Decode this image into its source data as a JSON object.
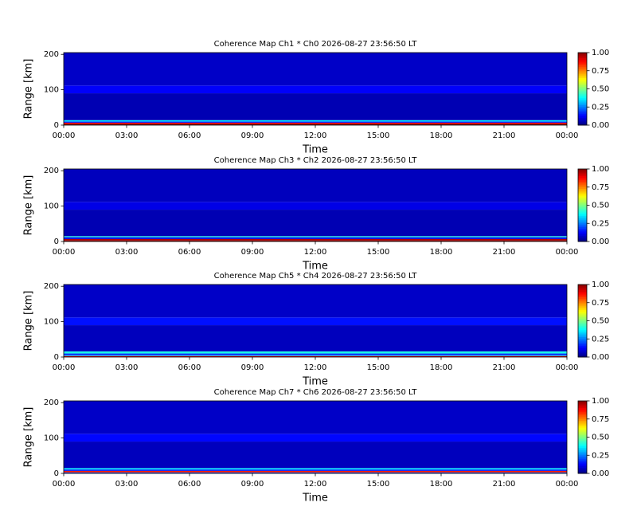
{
  "chart_data": [
    {
      "type": "heatmap",
      "title": "Coherence Map Ch1 * Ch0 2026-08-27 23:56:50 LT",
      "xlabel": "Time",
      "ylabel": "Range [km]",
      "xlim": [
        0,
        24
      ],
      "xticks": [
        {
          "value": 0,
          "label": "00:00"
        },
        {
          "value": 3,
          "label": "03:00"
        },
        {
          "value": 6,
          "label": "06:00"
        },
        {
          "value": 9,
          "label": "09:00"
        },
        {
          "value": 12,
          "label": "12:00"
        },
        {
          "value": 15,
          "label": "15:00"
        },
        {
          "value": 18,
          "label": "18:00"
        },
        {
          "value": 21,
          "label": "21:00"
        },
        {
          "value": 24,
          "label": "00:00"
        }
      ],
      "ylim": [
        0,
        205
      ],
      "yticks": [
        0,
        100,
        200
      ],
      "y_bins": [
        0,
        3,
        7,
        10,
        14,
        90,
        112,
        205
      ],
      "z": [
        1.0,
        0.9,
        0.15,
        0.35,
        0.05,
        0.12,
        0.07
      ],
      "colorbar": {
        "lim": [
          0,
          1
        ],
        "ticks": [
          {
            "value": 0,
            "label": "0.00"
          },
          {
            "value": 0.25,
            "label": "0.25"
          },
          {
            "value": 0.5,
            "label": "0.50"
          },
          {
            "value": 0.75,
            "label": "0.75"
          },
          {
            "value": 1,
            "label": "1.00"
          }
        ]
      }
    },
    {
      "type": "heatmap",
      "title": "Coherence Map Ch3 * Ch2 2026-08-27 23:56:50 LT",
      "xlabel": "Time",
      "ylabel": "Range [km]",
      "xlim": [
        0,
        24
      ],
      "xticks": [
        {
          "value": 0,
          "label": "00:00"
        },
        {
          "value": 3,
          "label": "03:00"
        },
        {
          "value": 6,
          "label": "06:00"
        },
        {
          "value": 9,
          "label": "09:00"
        },
        {
          "value": 12,
          "label": "12:00"
        },
        {
          "value": 15,
          "label": "15:00"
        },
        {
          "value": 18,
          "label": "18:00"
        },
        {
          "value": 21,
          "label": "21:00"
        },
        {
          "value": 24,
          "label": "00:00"
        }
      ],
      "ylim": [
        0,
        205
      ],
      "yticks": [
        0,
        100,
        200
      ],
      "y_bins": [
        0,
        3,
        7,
        12,
        15,
        90,
        112,
        205
      ],
      "z": [
        1.0,
        0.95,
        0.1,
        0.4,
        0.05,
        0.1,
        0.06
      ],
      "colorbar": {
        "lim": [
          0,
          1
        ],
        "ticks": [
          {
            "value": 0,
            "label": "0.00"
          },
          {
            "value": 0.25,
            "label": "0.25"
          },
          {
            "value": 0.5,
            "label": "0.50"
          },
          {
            "value": 0.75,
            "label": "0.75"
          },
          {
            "value": 1,
            "label": "1.00"
          }
        ]
      }
    },
    {
      "type": "heatmap",
      "title": "Coherence Map Ch5 * Ch4 2026-08-27 23:56:50 LT",
      "xlabel": "Time",
      "ylabel": "Range [km]",
      "xlim": [
        0,
        24
      ],
      "xticks": [
        {
          "value": 0,
          "label": "00:00"
        },
        {
          "value": 3,
          "label": "03:00"
        },
        {
          "value": 6,
          "label": "06:00"
        },
        {
          "value": 9,
          "label": "09:00"
        },
        {
          "value": 12,
          "label": "12:00"
        },
        {
          "value": 15,
          "label": "15:00"
        },
        {
          "value": 18,
          "label": "18:00"
        },
        {
          "value": 21,
          "label": "21:00"
        },
        {
          "value": 24,
          "label": "00:00"
        }
      ],
      "ylim": [
        0,
        205
      ],
      "yticks": [
        0,
        100,
        200
      ],
      "y_bins": [
        0,
        3,
        6,
        10,
        16,
        90,
        112,
        205
      ],
      "z": [
        0.9,
        0.3,
        0.15,
        0.4,
        0.06,
        0.14,
        0.07
      ],
      "colorbar": {
        "lim": [
          0,
          1
        ],
        "ticks": [
          {
            "value": 0,
            "label": "0.00"
          },
          {
            "value": 0.25,
            "label": "0.25"
          },
          {
            "value": 0.5,
            "label": "0.50"
          },
          {
            "value": 0.75,
            "label": "0.75"
          },
          {
            "value": 1,
            "label": "1.00"
          }
        ]
      }
    },
    {
      "type": "heatmap",
      "title": "Coherence Map Ch7 * Ch6 2026-08-27 23:56:50 LT",
      "xlabel": "Time",
      "ylabel": "Range [km]",
      "xlim": [
        0,
        24
      ],
      "xticks": [
        {
          "value": 0,
          "label": "00:00"
        },
        {
          "value": 3,
          "label": "03:00"
        },
        {
          "value": 6,
          "label": "06:00"
        },
        {
          "value": 9,
          "label": "09:00"
        },
        {
          "value": 12,
          "label": "12:00"
        },
        {
          "value": 15,
          "label": "15:00"
        },
        {
          "value": 18,
          "label": "18:00"
        },
        {
          "value": 21,
          "label": "21:00"
        },
        {
          "value": 24,
          "label": "00:00"
        }
      ],
      "ylim": [
        0,
        205
      ],
      "yticks": [
        0,
        100,
        200
      ],
      "y_bins": [
        0,
        3,
        7,
        11,
        15,
        90,
        112,
        205
      ],
      "z": [
        0.2,
        0.85,
        0.15,
        0.35,
        0.06,
        0.13,
        0.07
      ],
      "colorbar": {
        "lim": [
          0,
          1
        ],
        "ticks": [
          {
            "value": 0,
            "label": "0.00"
          },
          {
            "value": 0.25,
            "label": "0.25"
          },
          {
            "value": 0.5,
            "label": "0.50"
          },
          {
            "value": 0.75,
            "label": "0.75"
          },
          {
            "value": 1,
            "label": "1.00"
          }
        ]
      }
    }
  ]
}
